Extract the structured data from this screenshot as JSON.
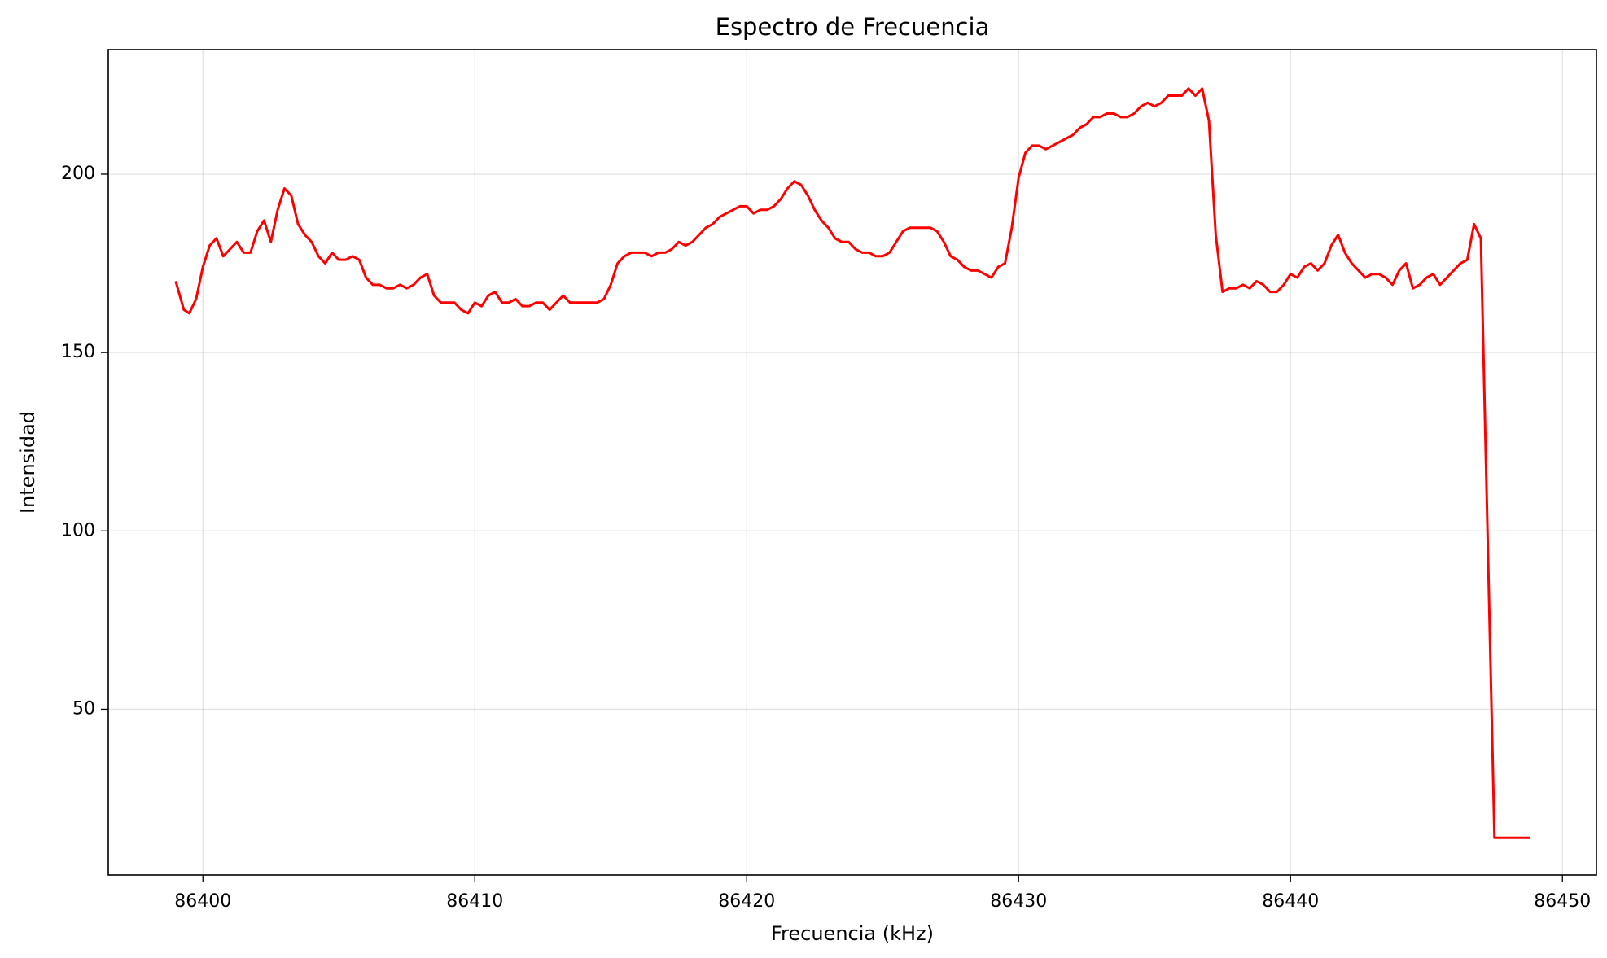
{
  "chart_data": {
    "type": "line",
    "title": "Espectro de Frecuencia",
    "x_label": "Frecuencia (kHz)",
    "y_label": "Intensidad",
    "grid": true,
    "xlim": [
      86396.52,
      86451.25
    ],
    "xticks": [
      86400,
      86410,
      86420,
      86430,
      86440,
      86450
    ],
    "ylim": [
      3.56,
      234.9
    ],
    "yticks": [
      50,
      100,
      150,
      200
    ],
    "x": [
      86399.0,
      86399.3,
      86399.5,
      86399.75,
      86400.0,
      86400.25,
      86400.5,
      86400.75,
      86401.0,
      86401.25,
      86401.5,
      86401.75,
      86402.0,
      86402.25,
      86402.5,
      86402.75,
      86403.0,
      86403.25,
      86403.5,
      86403.75,
      86404.0,
      86404.25,
      86404.5,
      86404.75,
      86405.0,
      86405.25,
      86405.5,
      86405.75,
      86406.0,
      86406.25,
      86406.5,
      86406.75,
      86407.0,
      86407.25,
      86407.5,
      86407.75,
      86408.0,
      86408.25,
      86408.5,
      86408.75,
      86409.0,
      86409.25,
      86409.5,
      86409.75,
      86410.0,
      86410.25,
      86410.5,
      86410.75,
      86411.0,
      86411.25,
      86411.5,
      86411.75,
      86412.0,
      86412.25,
      86412.5,
      86412.75,
      86413.0,
      86413.25,
      86413.5,
      86413.75,
      86414.0,
      86414.25,
      86414.5,
      86414.75,
      86415.0,
      86415.25,
      86415.5,
      86415.75,
      86416.0,
      86416.25,
      86416.5,
      86416.75,
      86417.0,
      86417.25,
      86417.5,
      86417.75,
      86418.0,
      86418.25,
      86418.5,
      86418.75,
      86419.0,
      86419.25,
      86419.5,
      86419.75,
      86420.0,
      86420.25,
      86420.5,
      86420.75,
      86421.0,
      86421.25,
      86421.5,
      86421.75,
      86422.0,
      86422.25,
      86422.5,
      86422.75,
      86423.0,
      86423.25,
      86423.5,
      86423.75,
      86424.0,
      86424.25,
      86424.5,
      86424.75,
      86425.0,
      86425.25,
      86425.5,
      86425.75,
      86426.0,
      86426.25,
      86426.5,
      86426.75,
      86427.0,
      86427.25,
      86427.5,
      86427.75,
      86428.0,
      86428.25,
      86428.5,
      86428.75,
      86429.0,
      86429.25,
      86429.5,
      86429.75,
      86430.0,
      86430.25,
      86430.5,
      86430.75,
      86431.0,
      86431.25,
      86431.5,
      86431.75,
      86432.0,
      86432.25,
      86432.5,
      86432.75,
      86433.0,
      86433.25,
      86433.5,
      86433.75,
      86434.0,
      86434.25,
      86434.5,
      86434.75,
      86435.0,
      86435.25,
      86435.5,
      86435.75,
      86436.0,
      86436.25,
      86436.5,
      86436.75,
      86437.0,
      86437.25,
      86437.5,
      86437.75,
      86438.0,
      86438.25,
      86438.5,
      86438.75,
      86439.0,
      86439.25,
      86439.5,
      86439.75,
      86440.0,
      86440.25,
      86440.5,
      86440.75,
      86441.0,
      86441.25,
      86441.5,
      86441.75,
      86442.0,
      86442.25,
      86442.5,
      86442.75,
      86443.0,
      86443.25,
      86443.5,
      86443.75,
      86444.0,
      86444.25,
      86444.5,
      86444.75,
      86445.0,
      86445.25,
      86445.5,
      86445.75,
      86446.0,
      86446.25,
      86446.5,
      86446.75,
      86447.0,
      86447.5,
      86448.8
    ],
    "series": [
      {
        "color": "#ff0000",
        "values": [
          170,
          162,
          161,
          165,
          174,
          180,
          182,
          177,
          179,
          181,
          178,
          178,
          184,
          187,
          181,
          190,
          196,
          194,
          186,
          183,
          181,
          177,
          175,
          178,
          176,
          176,
          177,
          176,
          171,
          169,
          169,
          168,
          168,
          169,
          168,
          169,
          171,
          172,
          166,
          164,
          164,
          164,
          162,
          161,
          164,
          163,
          166,
          167,
          164,
          164,
          165,
          163,
          163,
          164,
          164,
          162,
          164,
          166,
          164,
          164,
          164,
          164,
          164,
          165,
          169,
          175,
          177,
          178,
          178,
          178,
          177,
          178,
          178,
          179,
          181,
          180,
          181,
          183,
          185,
          186,
          188,
          189,
          190,
          191,
          191,
          189,
          190,
          190,
          191,
          193,
          196,
          198,
          197,
          194,
          190,
          187,
          185,
          182,
          181,
          181,
          179,
          178,
          178,
          177,
          177,
          178,
          181,
          184,
          185,
          185,
          185,
          185,
          184,
          181,
          177,
          176,
          174,
          173,
          173,
          172,
          171,
          174,
          175,
          185,
          199,
          206,
          208,
          208,
          207,
          208,
          209,
          210,
          211,
          213,
          214,
          216,
          216,
          217,
          217,
          216,
          216,
          217,
          219,
          220,
          219,
          220,
          222,
          222,
          222,
          224,
          222,
          224,
          215,
          183,
          167,
          168,
          168,
          169,
          168,
          170,
          169,
          167,
          167,
          169,
          172,
          171,
          174,
          175,
          173,
          175,
          180,
          183,
          178,
          175,
          173,
          171,
          172,
          172,
          171,
          169,
          173,
          175,
          168,
          169,
          171,
          172,
          169,
          171,
          173,
          175,
          176,
          186,
          182,
          14,
          14
        ]
      }
    ]
  }
}
